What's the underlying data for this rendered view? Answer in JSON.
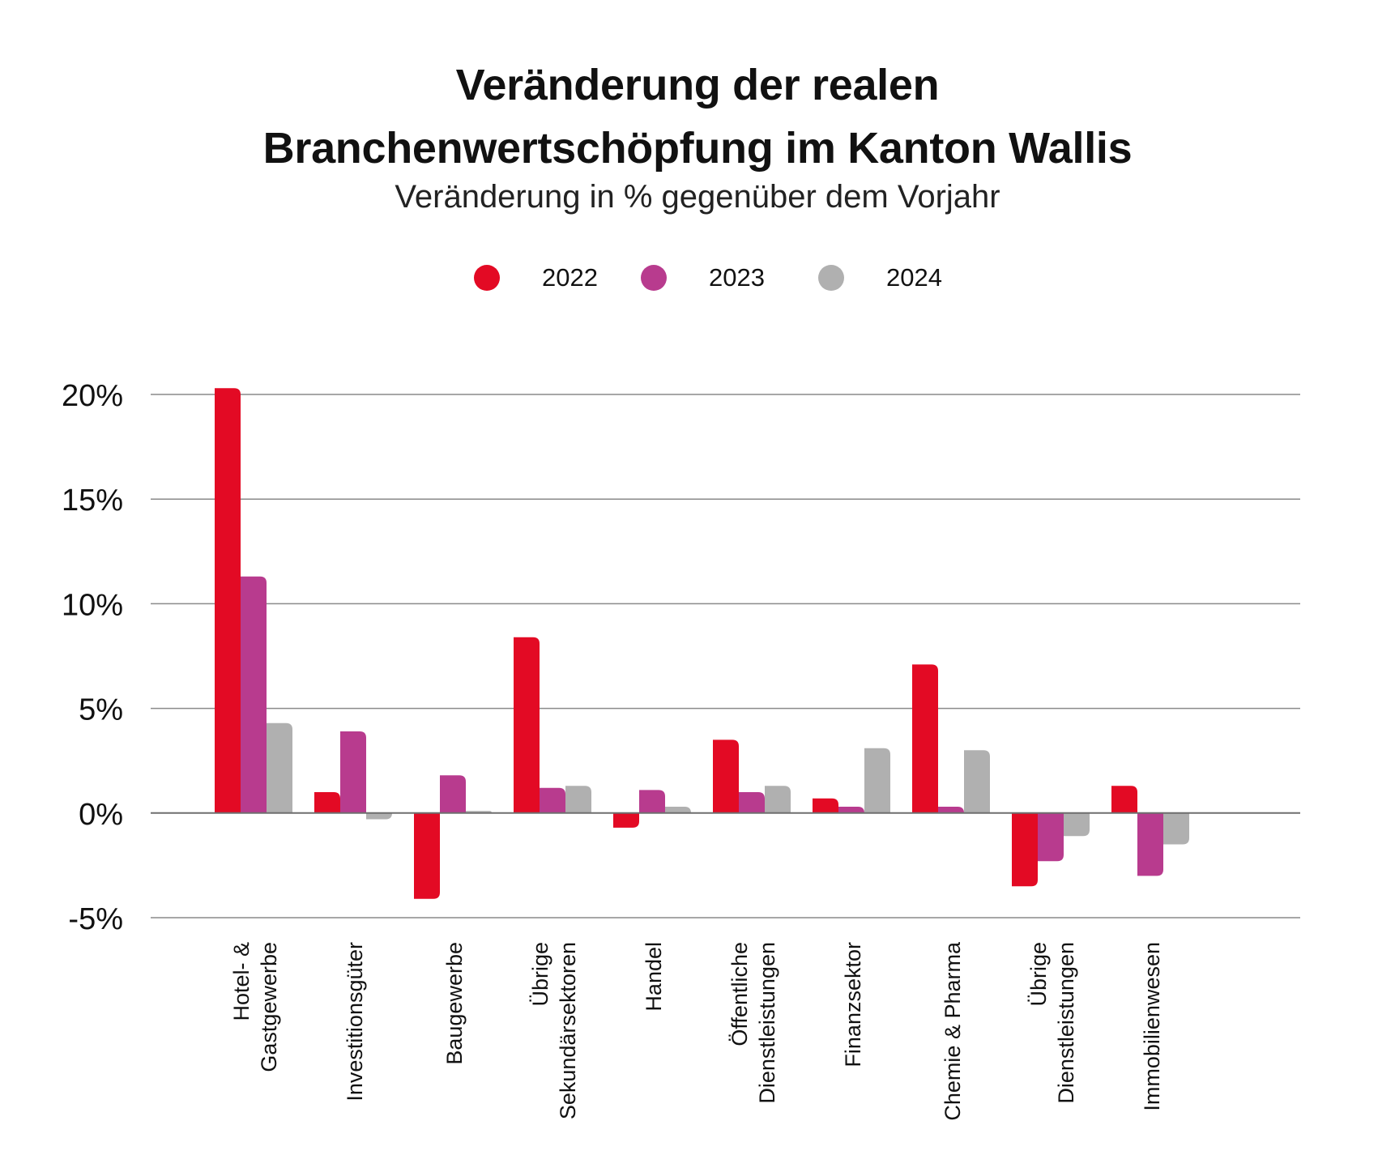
{
  "chart_data": {
    "type": "bar",
    "title_lines": [
      "Veränderung der realen",
      "Branchenwertschöpfung im Kanton Wallis"
    ],
    "subtitle": "Veränderung in % gegenüber dem Vorjahr",
    "categories": [
      [
        "Hotel- &",
        "Gastgewerbe"
      ],
      [
        "Investitionsgüter"
      ],
      [
        "Baugewerbe"
      ],
      [
        "Übrige",
        "Sekundärsektoren"
      ],
      [
        "Handel"
      ],
      [
        "Öffentliche",
        "Dienstleistungen"
      ],
      [
        "Finanzsektor"
      ],
      [
        "Chemie & Pharma"
      ],
      [
        "Übrige",
        "Dienstleistungen"
      ],
      [
        "Immobilienwesen"
      ]
    ],
    "series": [
      {
        "name": "2022",
        "color": "#e30a24",
        "values": [
          20.3,
          1.0,
          -4.1,
          8.4,
          -0.7,
          3.5,
          0.7,
          7.1,
          -3.5,
          1.3
        ]
      },
      {
        "name": "2023",
        "color": "#b83b8e",
        "values": [
          11.3,
          3.9,
          1.8,
          1.2,
          1.1,
          1.0,
          0.3,
          0.3,
          -2.3,
          -3.0
        ]
      },
      {
        "name": "2024",
        "color": "#b0b0b0",
        "values": [
          4.3,
          -0.3,
          0.1,
          1.3,
          0.3,
          1.3,
          3.1,
          3.0,
          -1.1,
          -1.5
        ]
      }
    ],
    "yticks": [
      20,
      15,
      10,
      5,
      0,
      -5
    ],
    "ytick_labels": [
      "20%",
      "15%",
      "10%",
      "5%",
      "0%",
      "-5%"
    ],
    "ylim": [
      -5,
      20
    ],
    "grid": true,
    "legend_position": "top-center"
  }
}
